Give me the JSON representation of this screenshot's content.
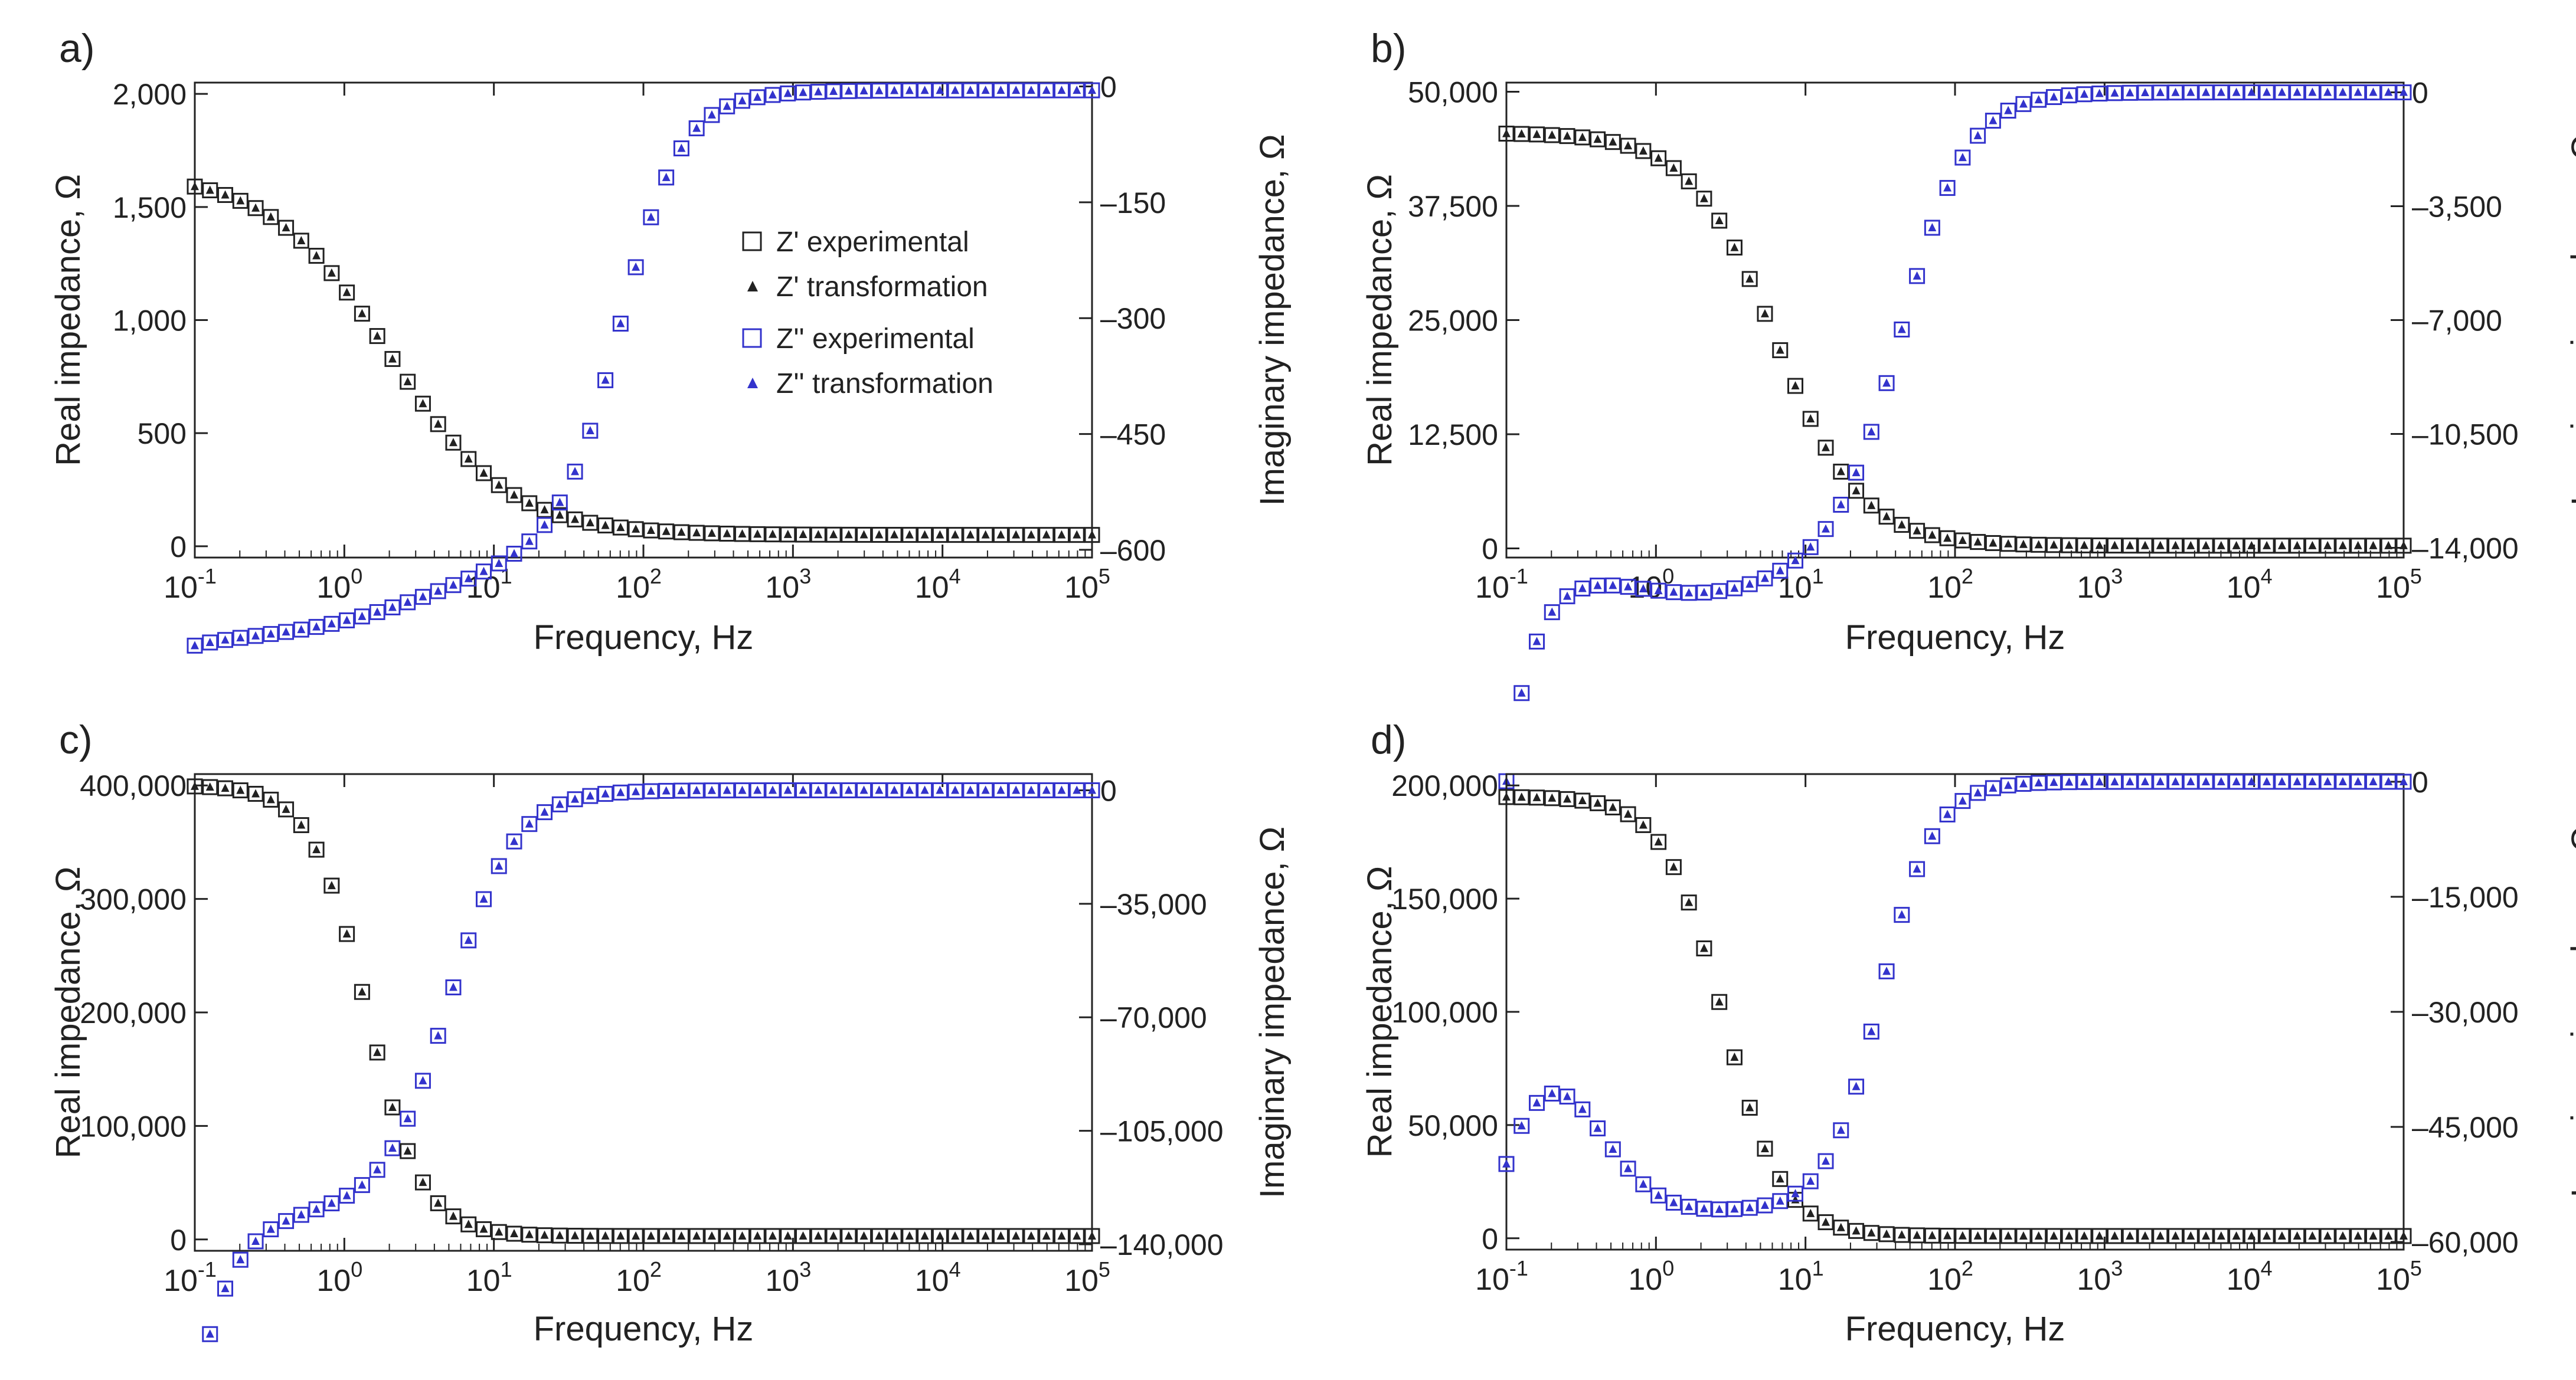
{
  "colors": {
    "real": "#222222",
    "imag": "#3333cc",
    "axis": "#222222"
  },
  "chart_data": [
    {
      "type": "scatter",
      "panel_label": "a)",
      "xlabel": "Frequency, Hz",
      "ylabel": "Real impedance, Ω",
      "y2label": "Imaginary impedance, Ω",
      "xscale": "log",
      "xlim": [
        0.1,
        100000
      ],
      "ylim": [
        -50,
        2050
      ],
      "y2lim": [
        -610,
        5
      ],
      "x_ticks": [
        0.1,
        1,
        10,
        100,
        1000,
        10000,
        100000
      ],
      "x_tick_labels": [
        {
          "base": "10",
          "exp": "-1"
        },
        {
          "base": "10",
          "exp": "0"
        },
        {
          "base": "10",
          "exp": "1"
        },
        {
          "base": "10",
          "exp": "2"
        },
        {
          "base": "10",
          "exp": "3"
        },
        {
          "base": "10",
          "exp": "4"
        },
        {
          "base": "10",
          "exp": "5"
        }
      ],
      "y_ticks": [
        0,
        500,
        1000,
        1500,
        2000
      ],
      "y_tick_labels": [
        "0",
        "500",
        "1,000",
        "1,500",
        "2,000"
      ],
      "y2_ticks": [
        0,
        -150,
        -300,
        -450,
        -600
      ],
      "y2_tick_labels": [
        "0",
        "–150",
        "–300",
        "–450",
        "–600"
      ],
      "legend": {
        "position": "center-right",
        "entries": [
          "Z' experimental",
          "Z' transformation",
          "Z'' experimental",
          "Z'' transformation"
        ]
      },
      "series_params": {
        "real": {
          "hi": 1650,
          "lo": 50,
          "center_log": 0.3,
          "width": 1.6,
          "bump_amp": 0,
          "bump_center": 0,
          "bump_width": 1
        },
        "imag": {
          "base": -565,
          "amp": 560,
          "center_log": 1.85,
          "width": 0.5,
          "bump_amp": -120,
          "bump_center": -0.3,
          "bump_width": 1.6,
          "head": -60,
          "head_decay": 0.6
        }
      }
    },
    {
      "type": "scatter",
      "panel_label": "b)",
      "xlabel": "Frequency, Hz",
      "ylabel": "Real impedance, Ω",
      "y2label": "Imaginary impedance, Ω",
      "xscale": "log",
      "xlim": [
        0.1,
        100000
      ],
      "ylim": [
        -1000,
        51000
      ],
      "y2lim": [
        -14300,
        300
      ],
      "x_ticks": [
        0.1,
        1,
        10,
        100,
        1000,
        10000,
        100000
      ],
      "x_tick_labels": [
        {
          "base": "10",
          "exp": "-1"
        },
        {
          "base": "10",
          "exp": "0"
        },
        {
          "base": "10",
          "exp": "1"
        },
        {
          "base": "10",
          "exp": "2"
        },
        {
          "base": "10",
          "exp": "3"
        },
        {
          "base": "10",
          "exp": "4"
        },
        {
          "base": "10",
          "exp": "5"
        }
      ],
      "y_ticks": [
        0,
        12500,
        25000,
        37500,
        50000
      ],
      "y_tick_labels": [
        "0",
        "12,500",
        "25,000",
        "37,500",
        "50,000"
      ],
      "y2_ticks": [
        0,
        -3500,
        -7000,
        -10500,
        -14000
      ],
      "y2_tick_labels": [
        "0",
        "–3,500",
        "–7,000",
        "–10,500",
        "–14,000"
      ],
      "series_params": {
        "real": {
          "hi": 45500,
          "lo": 300,
          "center_log": 0.8,
          "width": 1.15,
          "bump_amp": 0,
          "bump_center": 0,
          "bump_width": 1
        },
        "imag": {
          "base": -13900,
          "amp": 13900,
          "center_log": 1.65,
          "width": 0.55,
          "bump_amp": -1500,
          "bump_center": 0.3,
          "bump_width": 1.0,
          "head": -7000,
          "head_decay": 0.2
        }
      }
    },
    {
      "type": "scatter",
      "panel_label": "c)",
      "xlabel": "Frequency, Hz",
      "ylabel": "Real impedance, Ω",
      "y2label": "Imaginary impedance, Ω",
      "xscale": "log",
      "xlim": [
        0.1,
        100000
      ],
      "ylim": [
        -10000,
        410000
      ],
      "y2lim": [
        -142000,
        5000
      ],
      "x_ticks": [
        0.1,
        1,
        10,
        100,
        1000,
        10000,
        100000
      ],
      "x_tick_labels": [
        {
          "base": "10",
          "exp": "-1"
        },
        {
          "base": "10",
          "exp": "0"
        },
        {
          "base": "10",
          "exp": "1"
        },
        {
          "base": "10",
          "exp": "2"
        },
        {
          "base": "10",
          "exp": "3"
        },
        {
          "base": "10",
          "exp": "4"
        },
        {
          "base": "10",
          "exp": "5"
        }
      ],
      "y_ticks": [
        0,
        100000,
        200000,
        300000,
        400000
      ],
      "y_tick_labels": [
        "0",
        "100,000",
        "200,000",
        "300,000",
        "400,000"
      ],
      "y2_ticks": [
        0,
        -35000,
        -70000,
        -105000,
        -140000
      ],
      "y2_tick_labels": [
        "0",
        "–35,000",
        "–70,000",
        "–105,000",
        "–140,000"
      ],
      "series_params": {
        "real": {
          "hi": 400000,
          "lo": 3000,
          "center_log": 0.15,
          "width": 0.75,
          "bump_amp": 0,
          "bump_center": 0,
          "bump_width": 1
        },
        "imag": {
          "base": -130000,
          "amp": 130000,
          "center_log": 0.7,
          "width": 0.55,
          "bump_amp": 0,
          "bump_center": 0,
          "bump_width": 1,
          "head": -60000,
          "head_decay": 0.22
        }
      }
    },
    {
      "type": "scatter",
      "panel_label": "d)",
      "xlabel": "Frequency, Hz",
      "ylabel": "Real impedance, Ω",
      "y2label": "Imaginary impedance, Ω",
      "xscale": "log",
      "xlim": [
        0.1,
        100000
      ],
      "ylim": [
        -5000,
        205000
      ],
      "y2lim": [
        -61000,
        1000
      ],
      "x_ticks": [
        0.1,
        1,
        10,
        100,
        1000,
        10000,
        100000
      ],
      "x_tick_labels": [
        {
          "base": "10",
          "exp": "-1"
        },
        {
          "base": "10",
          "exp": "0"
        },
        {
          "base": "10",
          "exp": "1"
        },
        {
          "base": "10",
          "exp": "2"
        },
        {
          "base": "10",
          "exp": "3"
        },
        {
          "base": "10",
          "exp": "4"
        },
        {
          "base": "10",
          "exp": "5"
        }
      ],
      "y_ticks": [
        0,
        50000,
        100000,
        150000,
        200000
      ],
      "y_tick_labels": [
        "0",
        "50,000",
        "100,000",
        "150,000",
        "200,000"
      ],
      "y2_ticks": [
        0,
        -15000,
        -30000,
        -45000,
        -60000
      ],
      "y2_tick_labels": [
        "0",
        "–15,000",
        "–30,000",
        "–45,000",
        "–60,000"
      ],
      "series_params": {
        "real": {
          "hi": 195000,
          "lo": 1000,
          "center_log": 0.45,
          "width": 0.8,
          "bump_amp": 0,
          "bump_center": 0,
          "bump_width": 1
        },
        "imag": {
          "base": -56000,
          "amp": 56000,
          "center_log": 1.5,
          "width": 0.45,
          "bump_amp": 16000,
          "bump_center": -0.7,
          "bump_width": 0.5,
          "head": -5000,
          "head_decay": 0.15
        }
      }
    }
  ]
}
